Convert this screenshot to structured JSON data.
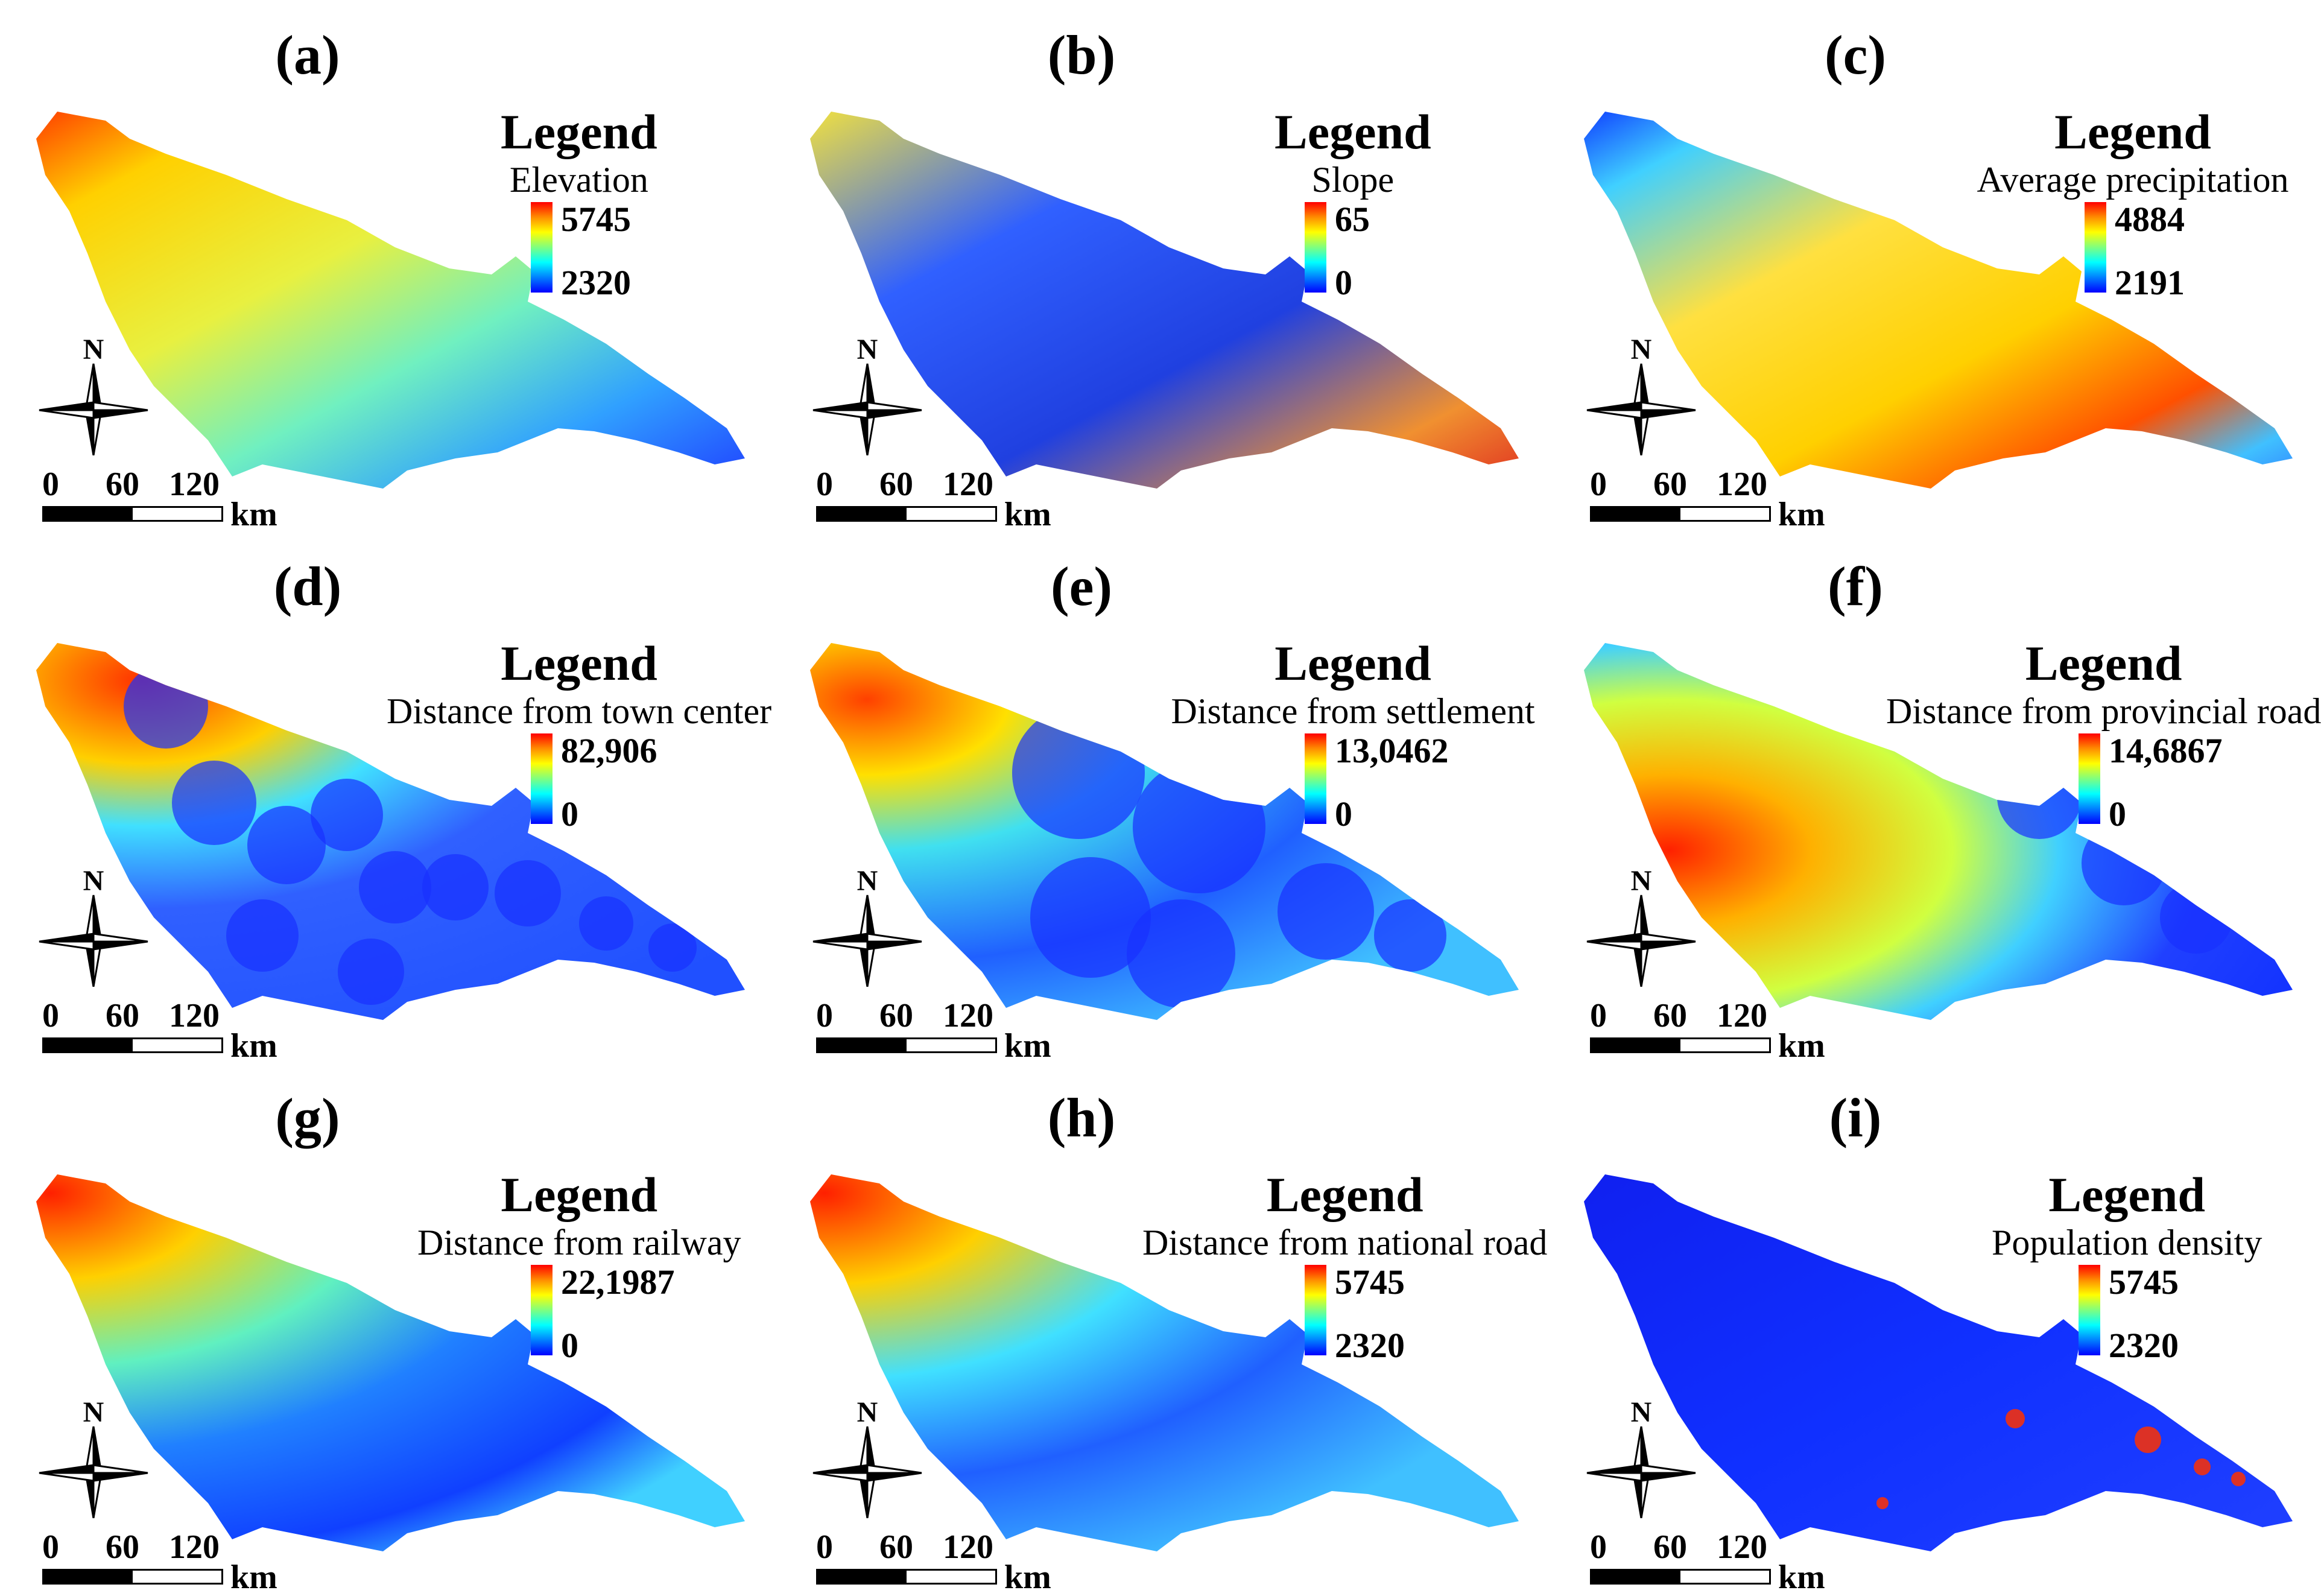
{
  "panels": [
    {
      "label": "(a)",
      "legend_title": "Legend",
      "legend_sub": "Elevation",
      "max": "5745",
      "min": "2320",
      "theme": "elevation"
    },
    {
      "label": "(b)",
      "legend_title": "Legend",
      "legend_sub": "Slope",
      "max": "65",
      "min": "0",
      "theme": "slope"
    },
    {
      "label": "(c)",
      "legend_title": "Legend",
      "legend_sub": "Average precipitation",
      "max": "4884",
      "min": "2191",
      "theme": "precip"
    },
    {
      "label": "(d)",
      "legend_title": "Legend",
      "legend_sub": "Distance from town center",
      "max": "82,906",
      "min": "0",
      "theme": "town"
    },
    {
      "label": "(e)",
      "legend_title": "Legend",
      "legend_sub": "Distance from settlement",
      "max": "13,0462",
      "min": "0",
      "theme": "settlement"
    },
    {
      "label": "(f)",
      "legend_title": "Legend",
      "legend_sub": "Distance from provincial road",
      "max": "14,6867",
      "min": "0",
      "theme": "provincial"
    },
    {
      "label": "(g)",
      "legend_title": "Legend",
      "legend_sub": "Distance from railway",
      "max": "22,1987",
      "min": "0",
      "theme": "railway"
    },
    {
      "label": "(h)",
      "legend_title": "Legend",
      "legend_sub": "Distance from national road",
      "max": "5745",
      "min": "2320",
      "theme": "national"
    },
    {
      "label": "(i)",
      "legend_title": "Legend",
      "legend_sub": "Population density",
      "max": "5745",
      "min": "2320",
      "theme": "population"
    }
  ],
  "north_label": "N",
  "scale": {
    "ticks": [
      "0",
      "60",
      "120"
    ],
    "unit": "km"
  },
  "colors": {
    "ramp_high": "#ff0000",
    "ramp_mid": "#ffff00",
    "ramp_low_mid": "#00ffff",
    "ramp_low": "#0000ff"
  }
}
